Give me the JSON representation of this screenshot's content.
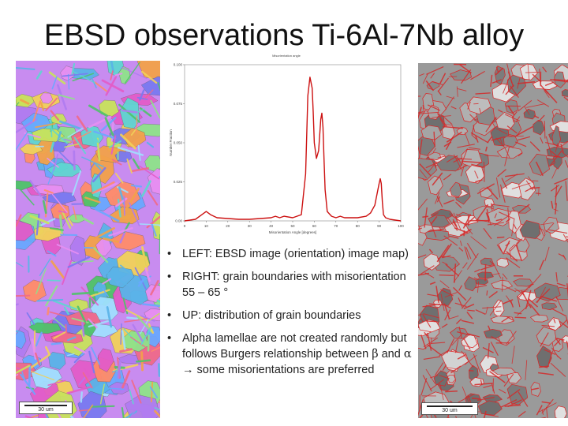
{
  "slide": {
    "title": "EBSD observations Ti-6Al-7Nb alloy"
  },
  "left_image": {
    "scale_label": "30 um"
  },
  "right_image": {
    "scale_label": "30 um"
  },
  "chart_data": {
    "type": "line",
    "title": "Misorientation angle",
    "xlabel": "Misorientation Angle [degrees]",
    "ylabel": "Number Fraction",
    "xlim": [
      0,
      100
    ],
    "ylim": [
      0,
      0.1
    ],
    "x_ticks": [
      "0",
      "10",
      "20",
      "30",
      "40",
      "50",
      "60",
      "70",
      "80",
      "90",
      "100"
    ],
    "y_ticks": [
      "0.00",
      "0.025",
      "0.050",
      "0.075",
      "0.100"
    ],
    "grid": false,
    "color": "#cc1111",
    "x": [
      0,
      5,
      8,
      10,
      12,
      15,
      20,
      25,
      30,
      35,
      40,
      42,
      44,
      46,
      50,
      54,
      56,
      57,
      58,
      59,
      59.5,
      60,
      61,
      62,
      63,
      63.5,
      64,
      64.5,
      65,
      66,
      68,
      70,
      72,
      74,
      80,
      84,
      86,
      88,
      90,
      90.5,
      91,
      91.5,
      92,
      93,
      95,
      100
    ],
    "y": [
      0,
      0.001,
      0.004,
      0.006,
      0.004,
      0.002,
      0.0015,
      0.001,
      0.001,
      0.0015,
      0.002,
      0.003,
      0.002,
      0.003,
      0.002,
      0.004,
      0.03,
      0.08,
      0.092,
      0.085,
      0.07,
      0.05,
      0.04,
      0.045,
      0.065,
      0.069,
      0.06,
      0.04,
      0.02,
      0.006,
      0.003,
      0.002,
      0.003,
      0.002,
      0.002,
      0.003,
      0.005,
      0.01,
      0.024,
      0.027,
      0.024,
      0.012,
      0.004,
      0.002,
      0.001,
      0
    ]
  },
  "bullets": [
    {
      "text": "LEFT: EBSD image (orientation) image map)"
    },
    {
      "text": "RIGHT: grain boundaries with misorientation 55 – 65 °"
    },
    {
      "text": "UP: distribution of grain boundaries"
    },
    {
      "pre": "Alpha lamellae are not created randomly but follows Burgers relationship between ",
      "beta": "β",
      "and": " and ",
      "alpha": "α",
      "arrow": " → ",
      "post": "some misorientations are preferred"
    }
  ]
}
